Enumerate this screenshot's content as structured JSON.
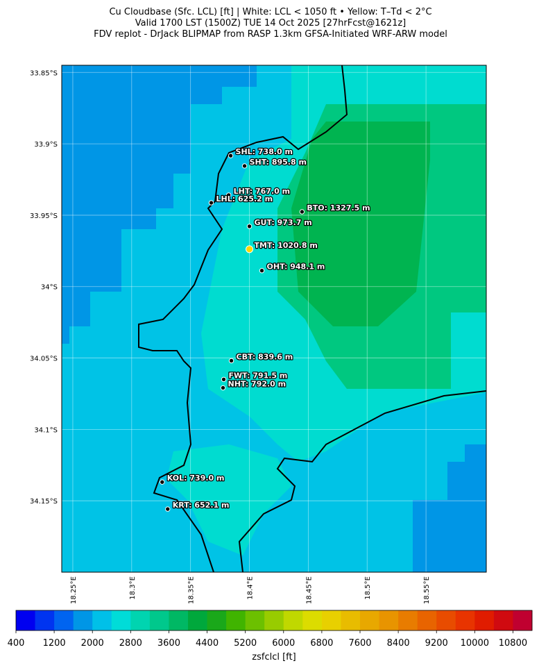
{
  "chart_data": {
    "type": "map",
    "title_lines": [
      "Cu Cloudbase (Sfc. LCL) [ft]  |  White: LCL < 1050 ft • Yellow: T–Td < 2°C",
      "Valid 1700 LST (1500Z) TUE 14 Oct 2025 [27hrFcst@1621z]",
      "FDV replot - DrJack BLIPMAP from RASP 1.3km GFSA-Initiated WRF-ARW model"
    ],
    "xlim": [
      18.2406,
      18.6012
    ],
    "ylim": [
      -33.845,
      -34.2
    ],
    "xticks": [
      {
        "value": 18.25,
        "label": "18.25°E"
      },
      {
        "value": 18.3,
        "label": "18.3°E"
      },
      {
        "value": 18.35,
        "label": "18.35°E"
      },
      {
        "value": 18.4,
        "label": "18.4°E"
      },
      {
        "value": 18.45,
        "label": "18.45°E"
      },
      {
        "value": 18.5,
        "label": "18.5°E"
      },
      {
        "value": 18.55,
        "label": "18.55°E"
      }
    ],
    "yticks": [
      {
        "value": -33.85,
        "label": "33.85°S"
      },
      {
        "value": -33.9,
        "label": "33.9°S"
      },
      {
        "value": -33.95,
        "label": "33.95°S"
      },
      {
        "value": -34,
        "label": "34°S"
      },
      {
        "value": -34.05,
        "label": "34.05°S"
      },
      {
        "value": -34.1,
        "label": "34.1°S"
      },
      {
        "value": -34.15,
        "label": "34.15°S"
      }
    ],
    "grid": true,
    "stations": [
      {
        "label": "SHL: 738.0 m",
        "lon": 18.3841,
        "lat": -33.9083,
        "color": "#000000"
      },
      {
        "label": "SHT: 895.8 m",
        "lon": 18.3959,
        "lat": -33.9155,
        "color": "#000000"
      },
      {
        "label": "LHT: 767.0 m",
        "lon": 18.3824,
        "lat": -33.9359,
        "color": "#000000"
      },
      {
        "label": "LHL: 625.2 m",
        "lon": 18.3676,
        "lat": -33.9413,
        "color": "#000000"
      },
      {
        "label": "BTO: 1327.5 m",
        "lon": 18.4447,
        "lat": -33.9476,
        "color": "#000000"
      },
      {
        "label": "GUT: 973.7 m",
        "lon": 18.4,
        "lat": -33.9578,
        "color": "#000000"
      },
      {
        "label": "TMT: 1020.8 m",
        "lon": 18.4,
        "lat": -33.9738,
        "color": "#ffd700"
      },
      {
        "label": "OHT: 948.1 m",
        "lon": 18.4106,
        "lat": -33.9888,
        "color": "#000000"
      },
      {
        "label": "CBT: 839.6 m",
        "lon": 18.3847,
        "lat": -34.0519,
        "color": "#000000"
      },
      {
        "label": "FWT: 791.5 m",
        "lon": 18.3782,
        "lat": -34.065,
        "color": "#000000"
      },
      {
        "label": "NHT: 792.0 m",
        "lon": 18.3776,
        "lat": -34.0709,
        "color": "#000000"
      },
      {
        "label": "KOL: 739.0 m",
        "lon": 18.3259,
        "lat": -34.1369,
        "color": "#000000"
      },
      {
        "label": "KRT: 652.1 m",
        "lon": 18.3306,
        "lat": -34.1558,
        "color": "#000000"
      }
    ],
    "colorbar": {
      "label": "zsfclcl [ft]",
      "clim": [
        400,
        11200
      ],
      "ticks": [
        400,
        1200,
        2000,
        2800,
        3600,
        4400,
        5200,
        6000,
        6800,
        7600,
        8400,
        9200,
        10000,
        10800
      ],
      "colors": [
        "#0000f0",
        "#0034f0",
        "#0064f0",
        "#0096e6",
        "#00c0e8",
        "#00dcd8",
        "#00d4b0",
        "#00c88c",
        "#00b864",
        "#00a83c",
        "#1aa81a",
        "#40b400",
        "#6cc000",
        "#98cc00",
        "#c0d800",
        "#dcdc00",
        "#e8d000",
        "#e8bc00",
        "#e8a800",
        "#e89400",
        "#e87c00",
        "#e86400",
        "#e84c00",
        "#e83400",
        "#e01c00",
        "#d00a10",
        "#c00030"
      ]
    }
  }
}
